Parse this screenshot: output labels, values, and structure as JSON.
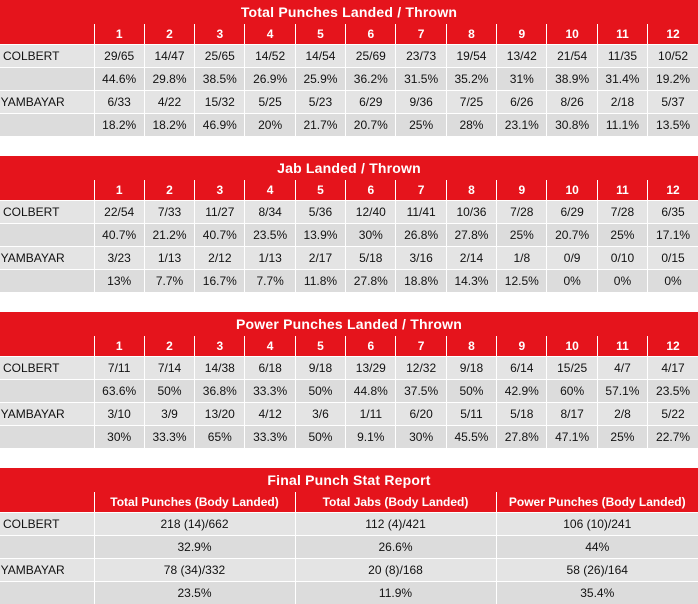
{
  "colors": {
    "header_red": "#e5141c",
    "row_light": "#e4e4e4",
    "row_dark": "#dcdcdc"
  },
  "rounds": [
    "1",
    "2",
    "3",
    "4",
    "5",
    "6",
    "7",
    "8",
    "9",
    "10",
    "11",
    "12"
  ],
  "total": {
    "title": "Total Punches Landed / Thrown",
    "colbert": {
      "name": "COLBERT",
      "landed": [
        "29/65",
        "14/47",
        "25/65",
        "14/52",
        "14/54",
        "25/69",
        "23/73",
        "19/54",
        "13/42",
        "21/54",
        "11/35",
        "10/52"
      ],
      "pct": [
        "44.6%",
        "29.8%",
        "38.5%",
        "26.9%",
        "25.9%",
        "36.2%",
        "31.5%",
        "35.2%",
        "31%",
        "38.9%",
        "31.4%",
        "19.2%"
      ]
    },
    "nyambayar": {
      "name": "NYAMBAYAR",
      "landed": [
        "6/33",
        "4/22",
        "15/32",
        "5/25",
        "5/23",
        "6/29",
        "9/36",
        "7/25",
        "6/26",
        "8/26",
        "2/18",
        "5/37"
      ],
      "pct": [
        "18.2%",
        "18.2%",
        "46.9%",
        "20%",
        "21.7%",
        "20.7%",
        "25%",
        "28%",
        "23.1%",
        "30.8%",
        "11.1%",
        "13.5%"
      ]
    }
  },
  "jab": {
    "title": "Jab Landed / Thrown",
    "colbert": {
      "name": "COLBERT",
      "landed": [
        "22/54",
        "7/33",
        "11/27",
        "8/34",
        "5/36",
        "12/40",
        "11/41",
        "10/36",
        "7/28",
        "6/29",
        "7/28",
        "6/35"
      ],
      "pct": [
        "40.7%",
        "21.2%",
        "40.7%",
        "23.5%",
        "13.9%",
        "30%",
        "26.8%",
        "27.8%",
        "25%",
        "20.7%",
        "25%",
        "17.1%"
      ]
    },
    "nyambayar": {
      "name": "NYAMBAYAR",
      "landed": [
        "3/23",
        "1/13",
        "2/12",
        "1/13",
        "2/17",
        "5/18",
        "3/16",
        "2/14",
        "1/8",
        "0/9",
        "0/10",
        "0/15"
      ],
      "pct": [
        "13%",
        "7.7%",
        "16.7%",
        "7.7%",
        "11.8%",
        "27.8%",
        "18.8%",
        "14.3%",
        "12.5%",
        "0%",
        "0%",
        "0%"
      ]
    }
  },
  "power": {
    "title": "Power Punches Landed / Thrown",
    "colbert": {
      "name": "COLBERT",
      "landed": [
        "7/11",
        "7/14",
        "14/38",
        "6/18",
        "9/18",
        "13/29",
        "12/32",
        "9/18",
        "6/14",
        "15/25",
        "4/7",
        "4/17"
      ],
      "pct": [
        "63.6%",
        "50%",
        "36.8%",
        "33.3%",
        "50%",
        "44.8%",
        "37.5%",
        "50%",
        "42.9%",
        "60%",
        "57.1%",
        "23.5%"
      ]
    },
    "nyambayar": {
      "name": "NYAMBAYAR",
      "landed": [
        "3/10",
        "3/9",
        "13/20",
        "4/12",
        "3/6",
        "1/11",
        "6/20",
        "5/11",
        "5/18",
        "8/17",
        "2/8",
        "5/22"
      ],
      "pct": [
        "30%",
        "33.3%",
        "65%",
        "33.3%",
        "50%",
        "9.1%",
        "30%",
        "45.5%",
        "27.8%",
        "47.1%",
        "25%",
        "22.7%"
      ]
    }
  },
  "final": {
    "title": "Final Punch Stat Report",
    "headers": [
      "Total Punches (Body Landed)",
      "Total Jabs (Body Landed)",
      "Power Punches (Body Landed)"
    ],
    "colbert": {
      "name": "COLBERT",
      "values": [
        "218 (14)/662",
        "112 (4)/421",
        "106 (10)/241"
      ],
      "pct": [
        "32.9%",
        "26.6%",
        "44%"
      ]
    },
    "nyambayar": {
      "name": "NYAMBAYAR",
      "values": [
        "78 (34)/332",
        "20 (8)/168",
        "58 (26)/164"
      ],
      "pct": [
        "23.5%",
        "11.9%",
        "35.4%"
      ]
    }
  }
}
